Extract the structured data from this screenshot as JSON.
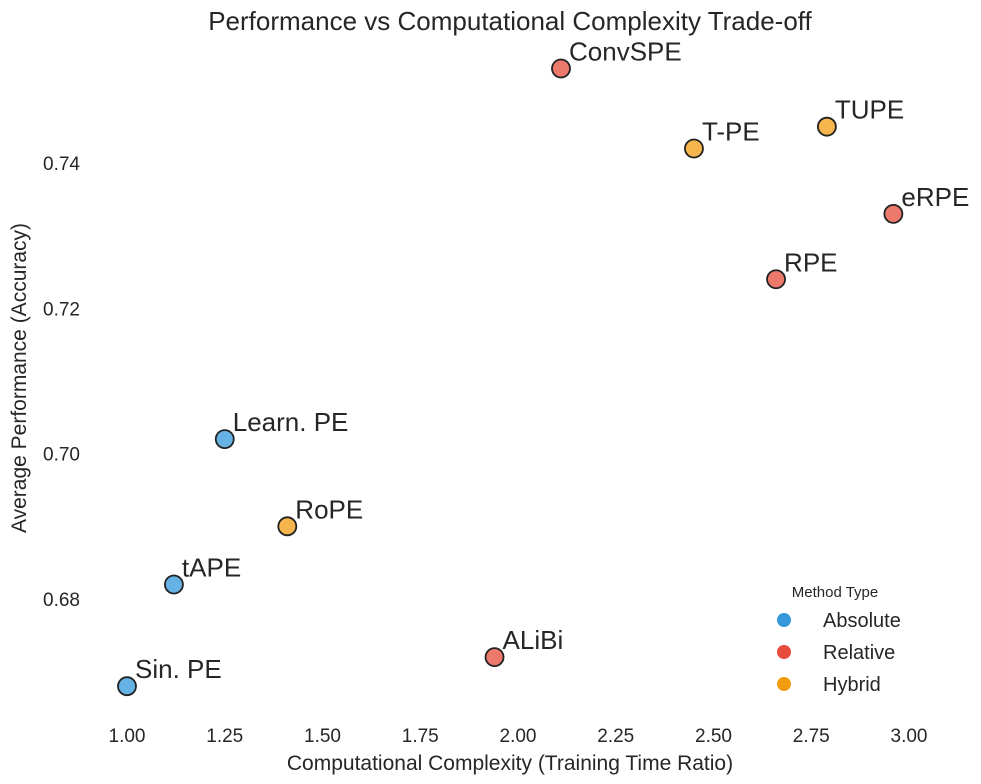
{
  "chart_data": {
    "type": "scatter",
    "title": "Performance vs Computational Complexity Trade-off",
    "xlabel": "Computational Complexity (Training Time Ratio)",
    "ylabel": "Average Performance (Accuracy)",
    "xlim": [
      0.94,
      3.02
    ],
    "ylim": [
      0.6645,
      0.7545
    ],
    "xticks": [
      "1.00",
      "1.25",
      "1.50",
      "1.75",
      "2.00",
      "2.25",
      "2.50",
      "2.75",
      "3.00"
    ],
    "yticks": [
      "0.68",
      "0.70",
      "0.72",
      "0.74"
    ],
    "grid": false,
    "legend": {
      "title": "Method Type",
      "position": "bottom-right",
      "entries": [
        {
          "label": "Absolute",
          "color": "#3498db"
        },
        {
          "label": "Relative",
          "color": "#e74c3c"
        },
        {
          "label": "Hybrid",
          "color": "#f39c12"
        }
      ]
    },
    "points": [
      {
        "label": "Sin. PE",
        "x": 1.0,
        "y": 0.668,
        "type": "Absolute"
      },
      {
        "label": "tAPE",
        "x": 1.12,
        "y": 0.682,
        "type": "Absolute"
      },
      {
        "label": "Learn. PE",
        "x": 1.25,
        "y": 0.702,
        "type": "Absolute"
      },
      {
        "label": "RoPE",
        "x": 1.41,
        "y": 0.69,
        "type": "Hybrid"
      },
      {
        "label": "ALiBi",
        "x": 1.94,
        "y": 0.672,
        "type": "Relative"
      },
      {
        "label": "ConvSPE",
        "x": 2.11,
        "y": 0.753,
        "type": "Relative"
      },
      {
        "label": "T-PE",
        "x": 2.45,
        "y": 0.742,
        "type": "Hybrid"
      },
      {
        "label": "RPE",
        "x": 2.66,
        "y": 0.724,
        "type": "Relative"
      },
      {
        "label": "TUPE",
        "x": 2.79,
        "y": 0.745,
        "type": "Hybrid"
      },
      {
        "label": "eRPE",
        "x": 2.96,
        "y": 0.733,
        "type": "Relative"
      }
    ]
  }
}
